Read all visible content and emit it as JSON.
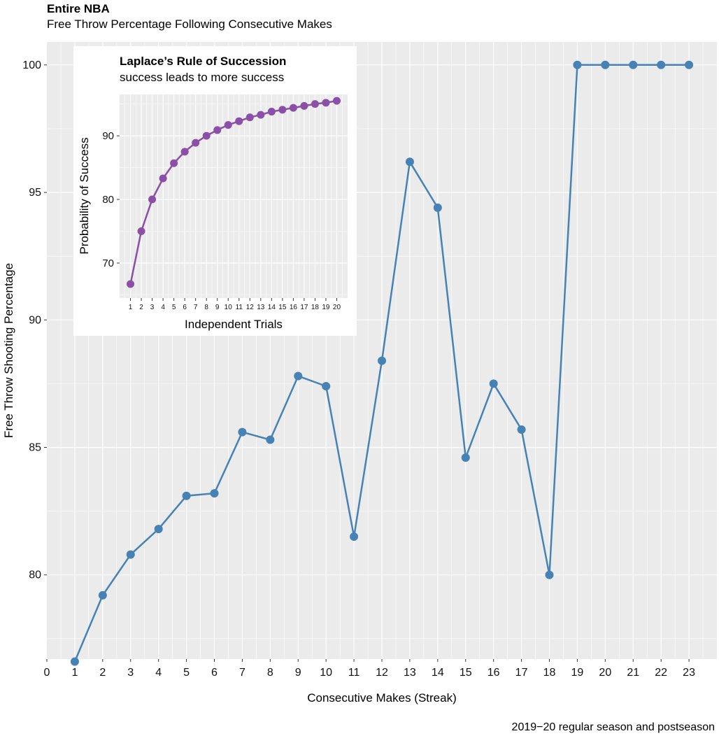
{
  "chart_data": [
    {
      "type": "line",
      "title": "Entire NBA",
      "subtitle": "Free Throw Percentage Following Consecutive Makes",
      "caption": "2019−20 regular season and postseason",
      "xlabel": "Consecutive Makes (Streak)",
      "ylabel": "Free Throw Shooting Percentage",
      "xlim": [
        0,
        24
      ],
      "ylim": [
        76.7,
        100.9
      ],
      "xticks": [
        "0",
        "1",
        "2",
        "3",
        "4",
        "5",
        "6",
        "7",
        "8",
        "9",
        "10",
        "11",
        "12",
        "13",
        "14",
        "15",
        "16",
        "17",
        "18",
        "19",
        "20",
        "21",
        "22",
        "23"
      ],
      "yticks": [
        "80",
        "85",
        "90",
        "95",
        "100"
      ],
      "color": "#4682b4",
      "grid": true,
      "x": [
        1,
        2,
        3,
        4,
        5,
        6,
        7,
        8,
        9,
        10,
        11,
        12,
        13,
        14,
        15,
        16,
        17,
        18,
        19,
        20,
        21,
        22,
        23
      ],
      "values": [
        76.6,
        79.2,
        80.8,
        81.8,
        83.1,
        83.2,
        85.6,
        85.3,
        87.8,
        87.4,
        81.5,
        88.4,
        96.2,
        94.4,
        84.6,
        87.5,
        85.7,
        80.0,
        100.0,
        100.0,
        100.0,
        100.0,
        100.0
      ]
    },
    {
      "type": "line",
      "title": "Laplace’s Rule of Succession",
      "subtitle": "success leads to more success",
      "xlabel": "Independent Trials",
      "ylabel": "Probability of Success",
      "xlim": [
        0,
        21
      ],
      "ylim": [
        64.5,
        96.5
      ],
      "xticks": [
        "1",
        "2",
        "3",
        "4",
        "5",
        "6",
        "7",
        "8",
        "9",
        "10",
        "11",
        "12",
        "13",
        "14",
        "15",
        "16",
        "17",
        "18",
        "19",
        "20"
      ],
      "yticks": [
        "70",
        "80",
        "90"
      ],
      "color": "#8b4fa8",
      "grid": true,
      "x": [
        1,
        2,
        3,
        4,
        5,
        6,
        7,
        8,
        9,
        10,
        11,
        12,
        13,
        14,
        15,
        16,
        17,
        18,
        19,
        20
      ],
      "values": [
        66.7,
        75.0,
        80.0,
        83.3,
        85.7,
        87.5,
        88.9,
        90.0,
        90.9,
        91.7,
        92.3,
        92.9,
        93.3,
        93.8,
        94.1,
        94.4,
        94.7,
        95.0,
        95.2,
        95.5
      ]
    }
  ]
}
